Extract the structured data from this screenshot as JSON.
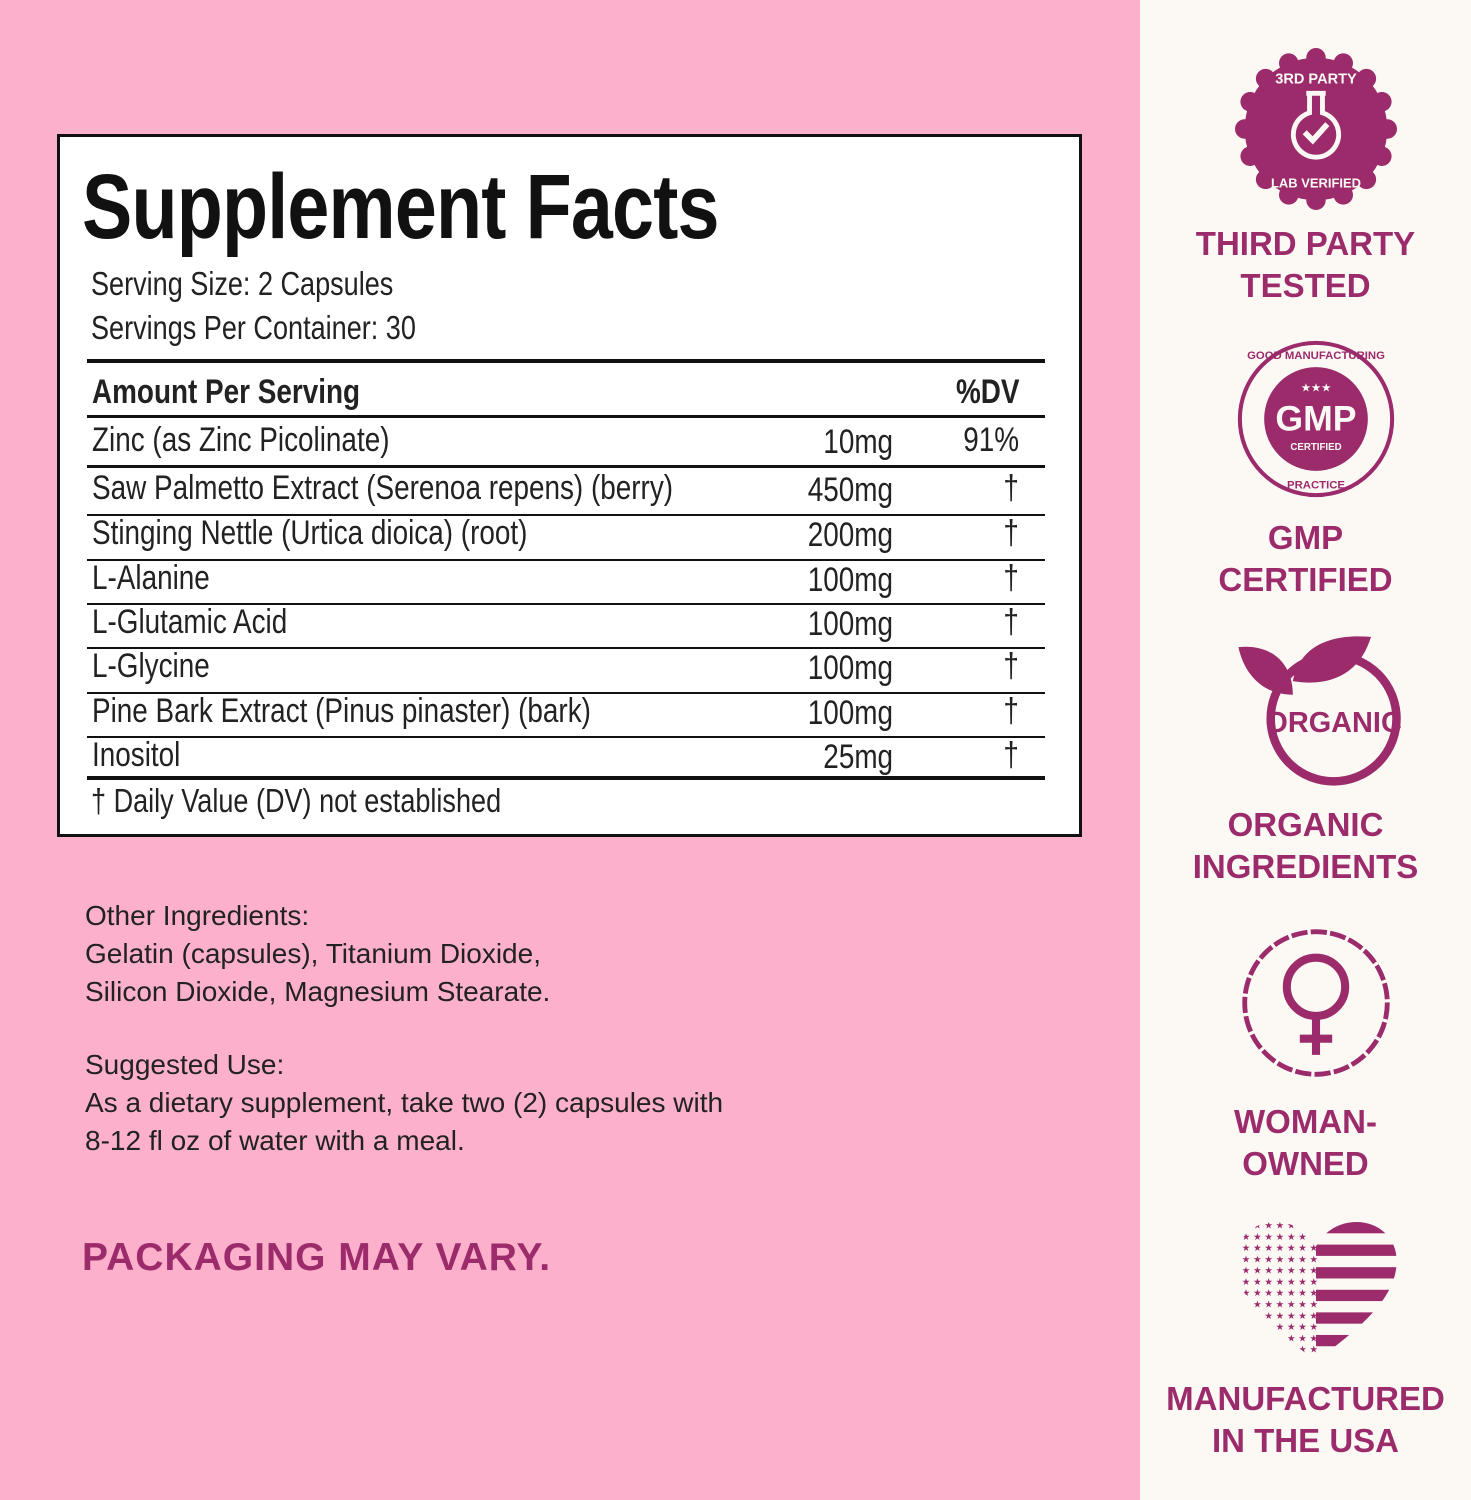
{
  "facts": {
    "title": "Supplement Facts",
    "serving_size": "Serving Size: 2 Capsules",
    "servings_per_container": "Servings Per Container: 30",
    "header_amount": "Amount Per Serving",
    "header_dv": "%DV",
    "rows": [
      {
        "name": "Zinc (as Zinc Picolinate)",
        "amount": "10mg",
        "dv": "91%"
      },
      {
        "name": "Saw Palmetto Extract (Serenoa repens) (berry)",
        "amount": "450mg",
        "dv": "†"
      },
      {
        "name": "Stinging Nettle (Urtica dioica) (root)",
        "amount": "200mg",
        "dv": "†"
      },
      {
        "name": "L-Alanine",
        "amount": "100mg",
        "dv": "†"
      },
      {
        "name": "L-Glutamic Acid",
        "amount": "100mg",
        "dv": "†"
      },
      {
        "name": "L-Glycine",
        "amount": "100mg",
        "dv": "†"
      },
      {
        "name": "Pine Bark Extract (Pinus pinaster) (bark)",
        "amount": "100mg",
        "dv": "†"
      },
      {
        "name": "Inositol",
        "amount": "25mg",
        "dv": "†"
      }
    ],
    "footnote": "† Daily Value (DV) not established"
  },
  "other_ingredients": {
    "heading": "Other Ingredients:",
    "line1": "Gelatin (capsules), Titanium Dioxide,",
    "line2": "Silicon Dioxide, Magnesium Stearate."
  },
  "suggested_use": {
    "heading": "Suggested Use:",
    "line1": "As a dietary supplement, take two (2) capsules with",
    "line2": "8-12 fl oz of water with a meal."
  },
  "packaging_note": "PACKAGING MAY VARY.",
  "badges": [
    {
      "icon": "lab-flask-seal-icon",
      "seal_text": "3RD PARTY LAB VERIFIED",
      "line1": "THIRD PARTY",
      "line2": "TESTED"
    },
    {
      "icon": "gmp-seal-icon",
      "seal_text": "GOOD MANUFACTURING PRACTICE GMP CERTIFIED",
      "line1": "GMP",
      "line2": "CERTIFIED"
    },
    {
      "icon": "organic-leaf-icon",
      "seal_text": "ORGANIC",
      "line1": "ORGANIC",
      "line2": "INGREDIENTS"
    },
    {
      "icon": "female-symbol-icon",
      "line1": "WOMAN-",
      "line2": "OWNED"
    },
    {
      "icon": "usa-flag-heart-icon",
      "line1": "MANUFACTURED",
      "line2": "IN THE USA"
    }
  ],
  "colors": {
    "background_pink": "#fdb0cb",
    "panel": "#fcf9f5",
    "accent_purple": "#9b2b6b"
  }
}
